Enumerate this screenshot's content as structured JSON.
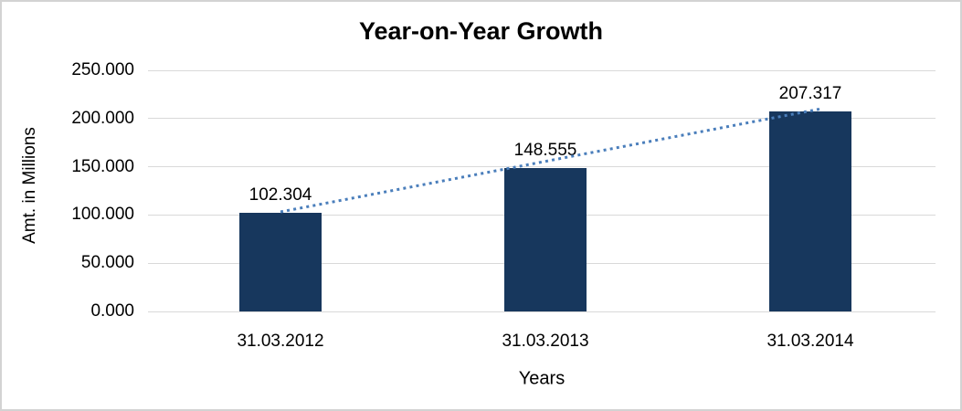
{
  "frame": {
    "border_color": "#D3D3D3",
    "background": "#FFFFFF"
  },
  "chart_data": {
    "type": "bar",
    "title": "Year-on-Year Growth",
    "xlabel": "Years",
    "ylabel": "Amt. in Millions",
    "categories": [
      "31.03.2012",
      "31.03.2013",
      "31.03.2014"
    ],
    "values": [
      102.304,
      148.555,
      207.317
    ],
    "data_labels": [
      "102.304",
      "148.555",
      "207.317"
    ],
    "y_ticks": [
      "0.000",
      "50.000",
      "100.000",
      "150.000",
      "200.000",
      "250.000"
    ],
    "ylim": [
      0,
      250
    ],
    "grid": true,
    "legend": "none",
    "colors": {
      "bar": "#17375D",
      "trendline": "#4A7EBB",
      "gridline": "#D9D9D9",
      "text": "#000000"
    },
    "trendline": {
      "kind": "linear",
      "style": "dotted"
    }
  }
}
